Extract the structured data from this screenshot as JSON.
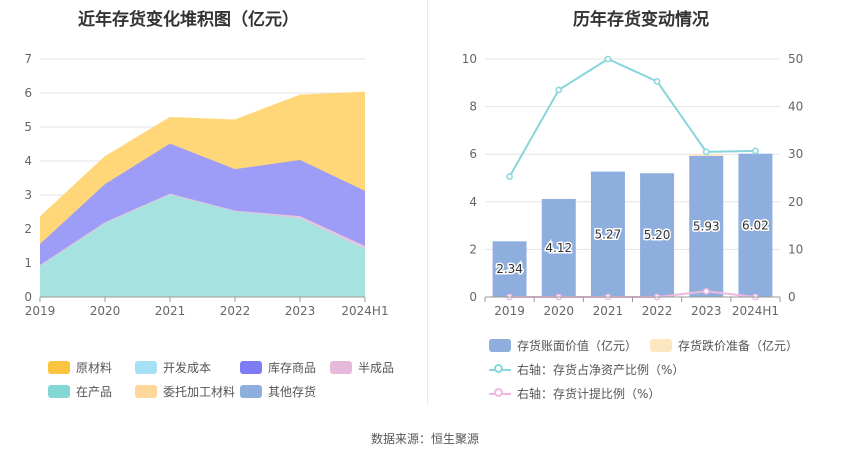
{
  "left_chart": {
    "title": "近年存货变化堆积图（亿元）"
  },
  "right_chart": {
    "title": "历年存货变动情况"
  },
  "source_text": "数据来源：恒生聚源",
  "chart_data": [
    {
      "type": "area",
      "title": "近年存货变化堆积图（亿元）",
      "categories": [
        "2019",
        "2020",
        "2021",
        "2022",
        "2023",
        "2024H1"
      ],
      "ylim": [
        0,
        7
      ],
      "yticks": [
        0,
        1,
        2,
        3,
        4,
        5,
        6,
        7
      ],
      "stacked": true,
      "grid": true,
      "legend_position": "bottom",
      "series": [
        {
          "name": "在产品",
          "color": "#a6e2e0",
          "values": [
            0.92,
            2.18,
            3.02,
            2.52,
            2.32,
            1.42
          ]
        },
        {
          "name": "半成品",
          "color": "#ecc3e0",
          "values": [
            0.02,
            0.02,
            0.02,
            0.02,
            0.06,
            0.08
          ]
        },
        {
          "name": "库存商品",
          "color": "#9d9cf7",
          "values": [
            0.62,
            1.12,
            1.47,
            1.22,
            1.65,
            1.62
          ]
        },
        {
          "name": "原材料",
          "color": "#ffd779",
          "values": [
            0.78,
            0.8,
            0.76,
            1.44,
            1.9,
            2.9
          ]
        },
        {
          "name": "开发成本",
          "color": "#a6e0f6",
          "values": [
            0,
            0,
            0,
            0,
            0,
            0
          ]
        },
        {
          "name": "委托加工材料",
          "color": "#ffd79b",
          "values": [
            0,
            0,
            0,
            0,
            0,
            0
          ]
        },
        {
          "name": "其他存货",
          "color": "#8eaede",
          "values": [
            0,
            0,
            0,
            0,
            0,
            0
          ]
        }
      ],
      "legend": [
        {
          "name": "原材料",
          "color": "#fbc43f"
        },
        {
          "name": "开发成本",
          "color": "#a6e0f6"
        },
        {
          "name": "库存商品",
          "color": "#7e7cf2"
        },
        {
          "name": "半成品",
          "color": "#e6b8da"
        },
        {
          "name": "在产品",
          "color": "#83d8d6"
        },
        {
          "name": "委托加工材料",
          "color": "#ffd79b"
        },
        {
          "name": "其他存货",
          "color": "#8eaede"
        }
      ]
    },
    {
      "type": "bar",
      "title": "历年存货变动情况",
      "categories": [
        "2019",
        "2020",
        "2021",
        "2022",
        "2023",
        "2024H1"
      ],
      "ylim_left": [
        0,
        10
      ],
      "yticks_left": [
        0,
        2,
        4,
        6,
        8,
        10
      ],
      "ylim_right": [
        0,
        50
      ],
      "yticks_right": [
        0,
        10,
        20,
        30,
        40,
        50
      ],
      "grid": true,
      "legend_position": "bottom",
      "series": [
        {
          "name": "存货账面价值（亿元）",
          "type": "bar",
          "axis": "left",
          "color": "#8eaede",
          "values": [
            2.34,
            4.12,
            5.27,
            5.2,
            5.93,
            6.02
          ],
          "labels": [
            "2.34",
            "4.12",
            "5.27",
            "5.20",
            "5.93",
            "6.02"
          ]
        },
        {
          "name": "存货跌价准备（亿元）",
          "type": "bar",
          "axis": "left",
          "color": "#fde7c0",
          "values": [
            0,
            0,
            0,
            0,
            0.07,
            0
          ]
        },
        {
          "name": "右轴：存货占净资产比例（%）",
          "type": "line",
          "axis": "right",
          "color": "#86d6dc",
          "values": [
            25.3,
            43.5,
            50.0,
            45.3,
            30.5,
            30.7
          ]
        },
        {
          "name": "右轴：存货计提比例（%）",
          "type": "line",
          "axis": "right",
          "color": "#f1b8df",
          "values": [
            0,
            0,
            0,
            0,
            1.2,
            0
          ]
        }
      ]
    }
  ]
}
